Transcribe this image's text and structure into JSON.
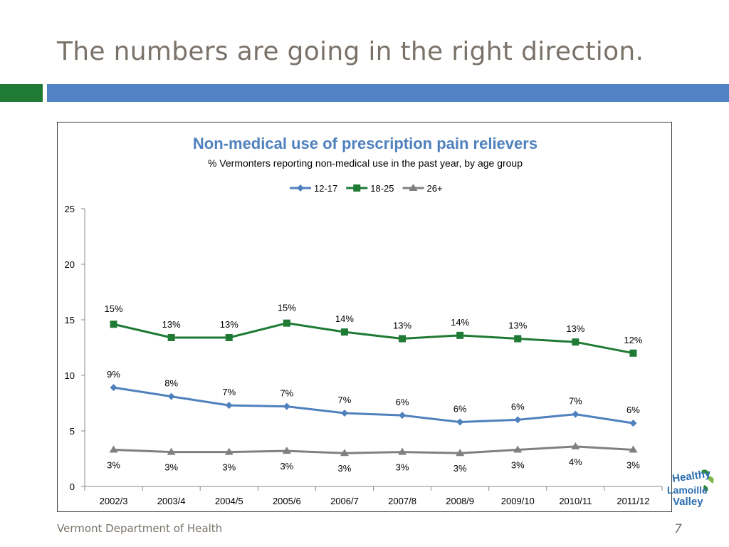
{
  "slide": {
    "title": "The numbers are going in the right direction.",
    "footer": "Vermont Department of Health",
    "page_number": "7",
    "logo_text": [
      "Healthy",
      "Lamoille",
      "Valley"
    ]
  },
  "colors": {
    "title": "#7a7269",
    "accent_green": "#1f7a34",
    "accent_blue": "#5182c4",
    "chart_title": "#4f81bd"
  },
  "chart_data": {
    "type": "line",
    "title": "Non-medical use of prescription pain relievers",
    "subtitle": "% Vermonters reporting non-medical use in the past year, by age group",
    "legend_position": "top",
    "categories": [
      "2002/3",
      "2003/4",
      "2004/5",
      "2005/6",
      "2006/7",
      "2007/8",
      "2008/9",
      "2009/10",
      "2010/11",
      "2011/12"
    ],
    "ylim": [
      0,
      25
    ],
    "yticks": [
      "0",
      "5",
      "10",
      "15",
      "20",
      "25"
    ],
    "grid": false,
    "series": [
      {
        "name": "12-17",
        "color": "#4f81bd",
        "marker": "diamond",
        "values": [
          8.9,
          8.1,
          7.3,
          7.2,
          6.6,
          6.4,
          5.8,
          6.0,
          6.5,
          5.7
        ],
        "labels": [
          "9%",
          "8%",
          "7%",
          "7%",
          "7%",
          "6%",
          "6%",
          "6%",
          "7%",
          "6%"
        ]
      },
      {
        "name": "18-25",
        "color": "#1f7a34",
        "marker": "square",
        "values": [
          14.6,
          13.4,
          13.4,
          14.7,
          13.9,
          13.3,
          13.6,
          13.3,
          13.0,
          12.0
        ],
        "labels": [
          "15%",
          "13%",
          "13%",
          "15%",
          "14%",
          "13%",
          "14%",
          "13%",
          "13%",
          "12%"
        ]
      },
      {
        "name": "26+",
        "color": "#808080",
        "marker": "triangle",
        "values": [
          3.3,
          3.1,
          3.1,
          3.2,
          3.0,
          3.1,
          3.0,
          3.3,
          3.6,
          3.3
        ],
        "labels": [
          "3%",
          "3%",
          "3%",
          "3%",
          "3%",
          "3%",
          "3%",
          "3%",
          "4%",
          "3%"
        ]
      }
    ]
  }
}
